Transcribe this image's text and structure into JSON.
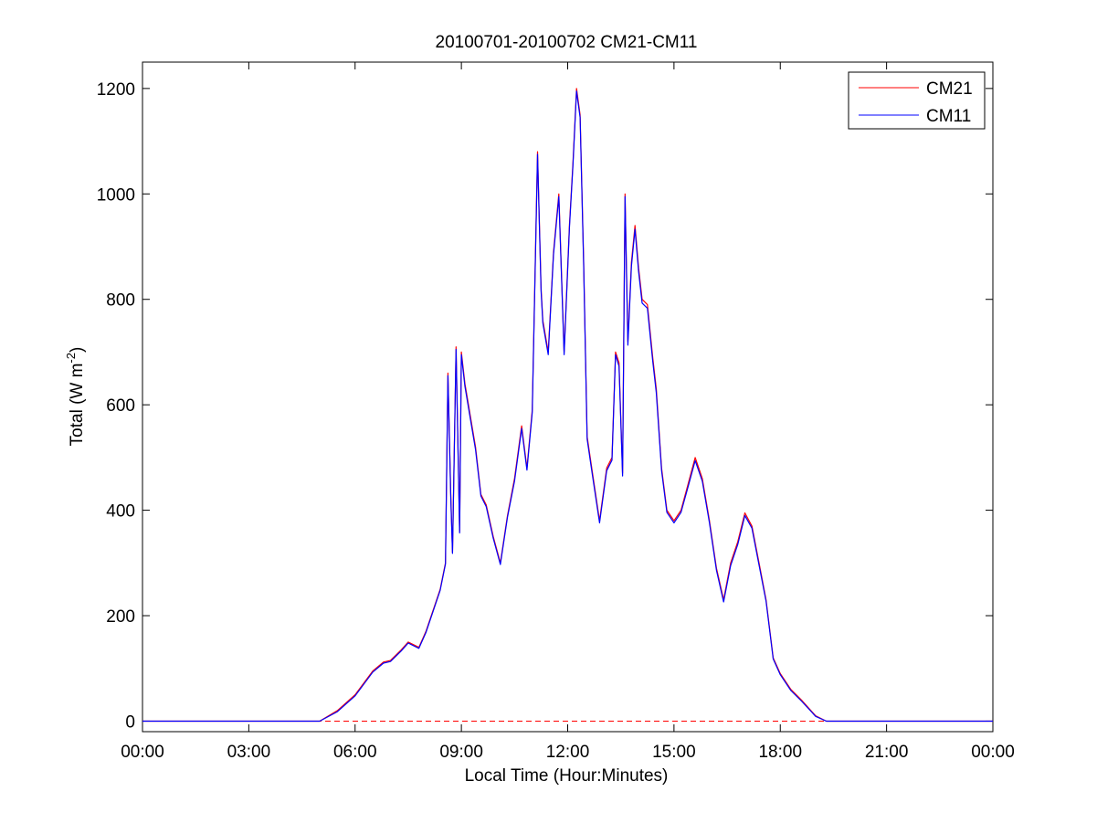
{
  "chart_data": {
    "type": "line",
    "title": "20100701-20100702 CM21-CM11",
    "xlabel": "Local Time (Hour:Minutes)",
    "ylabel": "Total (W m",
    "ylabel_sup": "-2",
    "ylabel_end": ")",
    "xlim": [
      0,
      24
    ],
    "ylim": [
      -20,
      1250
    ],
    "x_tick_values": [
      0,
      3,
      6,
      9,
      12,
      15,
      18,
      21,
      24
    ],
    "x_tick_labels": [
      "00:00",
      "03:00",
      "06:00",
      "09:00",
      "12:00",
      "15:00",
      "18:00",
      "21:00",
      "00:00"
    ],
    "y_ticks": [
      0,
      200,
      400,
      600,
      800,
      1000,
      1200
    ],
    "grid": false,
    "legend_position": "top-right",
    "baseline": {
      "y": 0,
      "style": "dashed",
      "color": "#ff0000"
    },
    "series": [
      {
        "name": "CM21",
        "color": "#ff0000"
      },
      {
        "name": "CM11",
        "color": "#0000ff"
      }
    ],
    "x": [
      0,
      5.0,
      5.5,
      6.0,
      6.5,
      6.8,
      7.0,
      7.3,
      7.5,
      7.8,
      8.0,
      8.2,
      8.4,
      8.55,
      8.62,
      8.7,
      8.75,
      8.85,
      8.95,
      9.0,
      9.1,
      9.25,
      9.4,
      9.55,
      9.7,
      9.9,
      10.1,
      10.3,
      10.5,
      10.7,
      10.85,
      11.0,
      11.15,
      11.25,
      11.3,
      11.45,
      11.6,
      11.75,
      11.9,
      12.05,
      12.15,
      12.25,
      12.35,
      12.45,
      12.55,
      12.7,
      12.9,
      13.1,
      13.25,
      13.35,
      13.45,
      13.55,
      13.62,
      13.7,
      13.8,
      13.9,
      14.0,
      14.1,
      14.25,
      14.4,
      14.5,
      14.65,
      14.8,
      15.0,
      15.2,
      15.4,
      15.6,
      15.8,
      16.0,
      16.2,
      16.4,
      16.6,
      16.8,
      17.0,
      17.2,
      17.4,
      17.6,
      17.8,
      18.0,
      18.3,
      18.6,
      19.0,
      19.3,
      19.6,
      20.0,
      24.0
    ],
    "values_cm21": [
      0,
      0,
      20,
      50,
      95,
      112,
      115,
      135,
      150,
      140,
      170,
      210,
      250,
      300,
      660,
      430,
      320,
      710,
      360,
      700,
      640,
      580,
      520,
      430,
      410,
      350,
      300,
      390,
      460,
      560,
      480,
      590,
      1080,
      820,
      760,
      700,
      890,
      1000,
      700,
      940,
      1060,
      1200,
      1150,
      870,
      540,
      470,
      380,
      480,
      500,
      700,
      680,
      470,
      1000,
      720,
      870,
      940,
      860,
      800,
      790,
      690,
      630,
      480,
      400,
      380,
      400,
      450,
      500,
      460,
      380,
      290,
      230,
      300,
      340,
      395,
      370,
      300,
      230,
      120,
      90,
      60,
      40,
      10,
      0,
      0,
      0,
      0
    ],
    "values_cm11": [
      0,
      0,
      18,
      48,
      93,
      110,
      113,
      133,
      148,
      138,
      168,
      208,
      248,
      298,
      655,
      425,
      318,
      705,
      357,
      695,
      635,
      575,
      515,
      427,
      407,
      347,
      297,
      387,
      455,
      555,
      476,
      585,
      1075,
      815,
      755,
      695,
      885,
      995,
      695,
      935,
      1055,
      1195,
      1145,
      865,
      535,
      465,
      376,
      475,
      495,
      695,
      673,
      465,
      995,
      713,
      863,
      933,
      853,
      793,
      783,
      683,
      623,
      475,
      396,
      376,
      396,
      445,
      494,
      455,
      376,
      286,
      226,
      295,
      335,
      390,
      366,
      296,
      227,
      118,
      88,
      58,
      38,
      9,
      0,
      0,
      0,
      0
    ]
  }
}
